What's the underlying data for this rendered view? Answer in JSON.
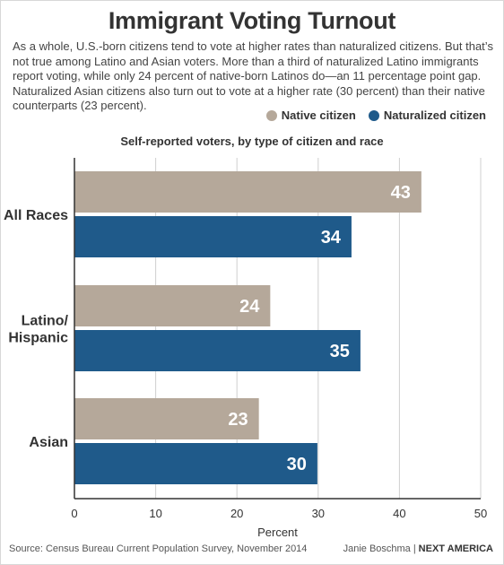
{
  "title": "Immigrant Voting Turnout",
  "description": "As a whole, U.S.-born citizens tend to vote at higher rates than naturalized citizens. But that’s not true among Latino and Asian voters. More than a third of naturalized Latino immigrants report voting, while only 24 percent of native-born Latinos do—an 11 percentage point gap. Naturalized Asian citizens also turn out to vote at a higher rate (30 percent) than their native counterparts (23 percent).",
  "legend": [
    {
      "label": "Native citizen",
      "color": "#b5a89a"
    },
    {
      "label": "Naturalized citizen",
      "color": "#1f5a8a"
    }
  ],
  "footer": {
    "source": "Source: Census Bureau Current Population Survey, November 2014",
    "author": "Janie Boschma",
    "separator": "|",
    "brand": "NEXT AMERICA"
  },
  "chart_data": {
    "type": "bar",
    "orientation": "horizontal",
    "title": "Self-reported voters, by type of citizen and race",
    "xlabel": "Percent",
    "ylabel": "",
    "xlim": [
      0,
      50
    ],
    "ticks": [
      0,
      10,
      20,
      30,
      40,
      50
    ],
    "grid": true,
    "legend_position": "top-right",
    "categories": [
      {
        "lines": [
          "All Races"
        ]
      },
      {
        "lines": [
          "Latino/",
          "Hispanic"
        ]
      },
      {
        "lines": [
          "Asian"
        ]
      }
    ],
    "series": [
      {
        "name": "Native citizen",
        "color": "#b5a89a",
        "values": [
          42.7,
          24.1,
          22.7
        ],
        "labels": [
          "43",
          "24",
          "23"
        ]
      },
      {
        "name": "Naturalized citizen",
        "color": "#1f5a8a",
        "values": [
          34.1,
          35.2,
          29.9
        ],
        "labels": [
          "34",
          "35",
          "30"
        ]
      }
    ]
  }
}
